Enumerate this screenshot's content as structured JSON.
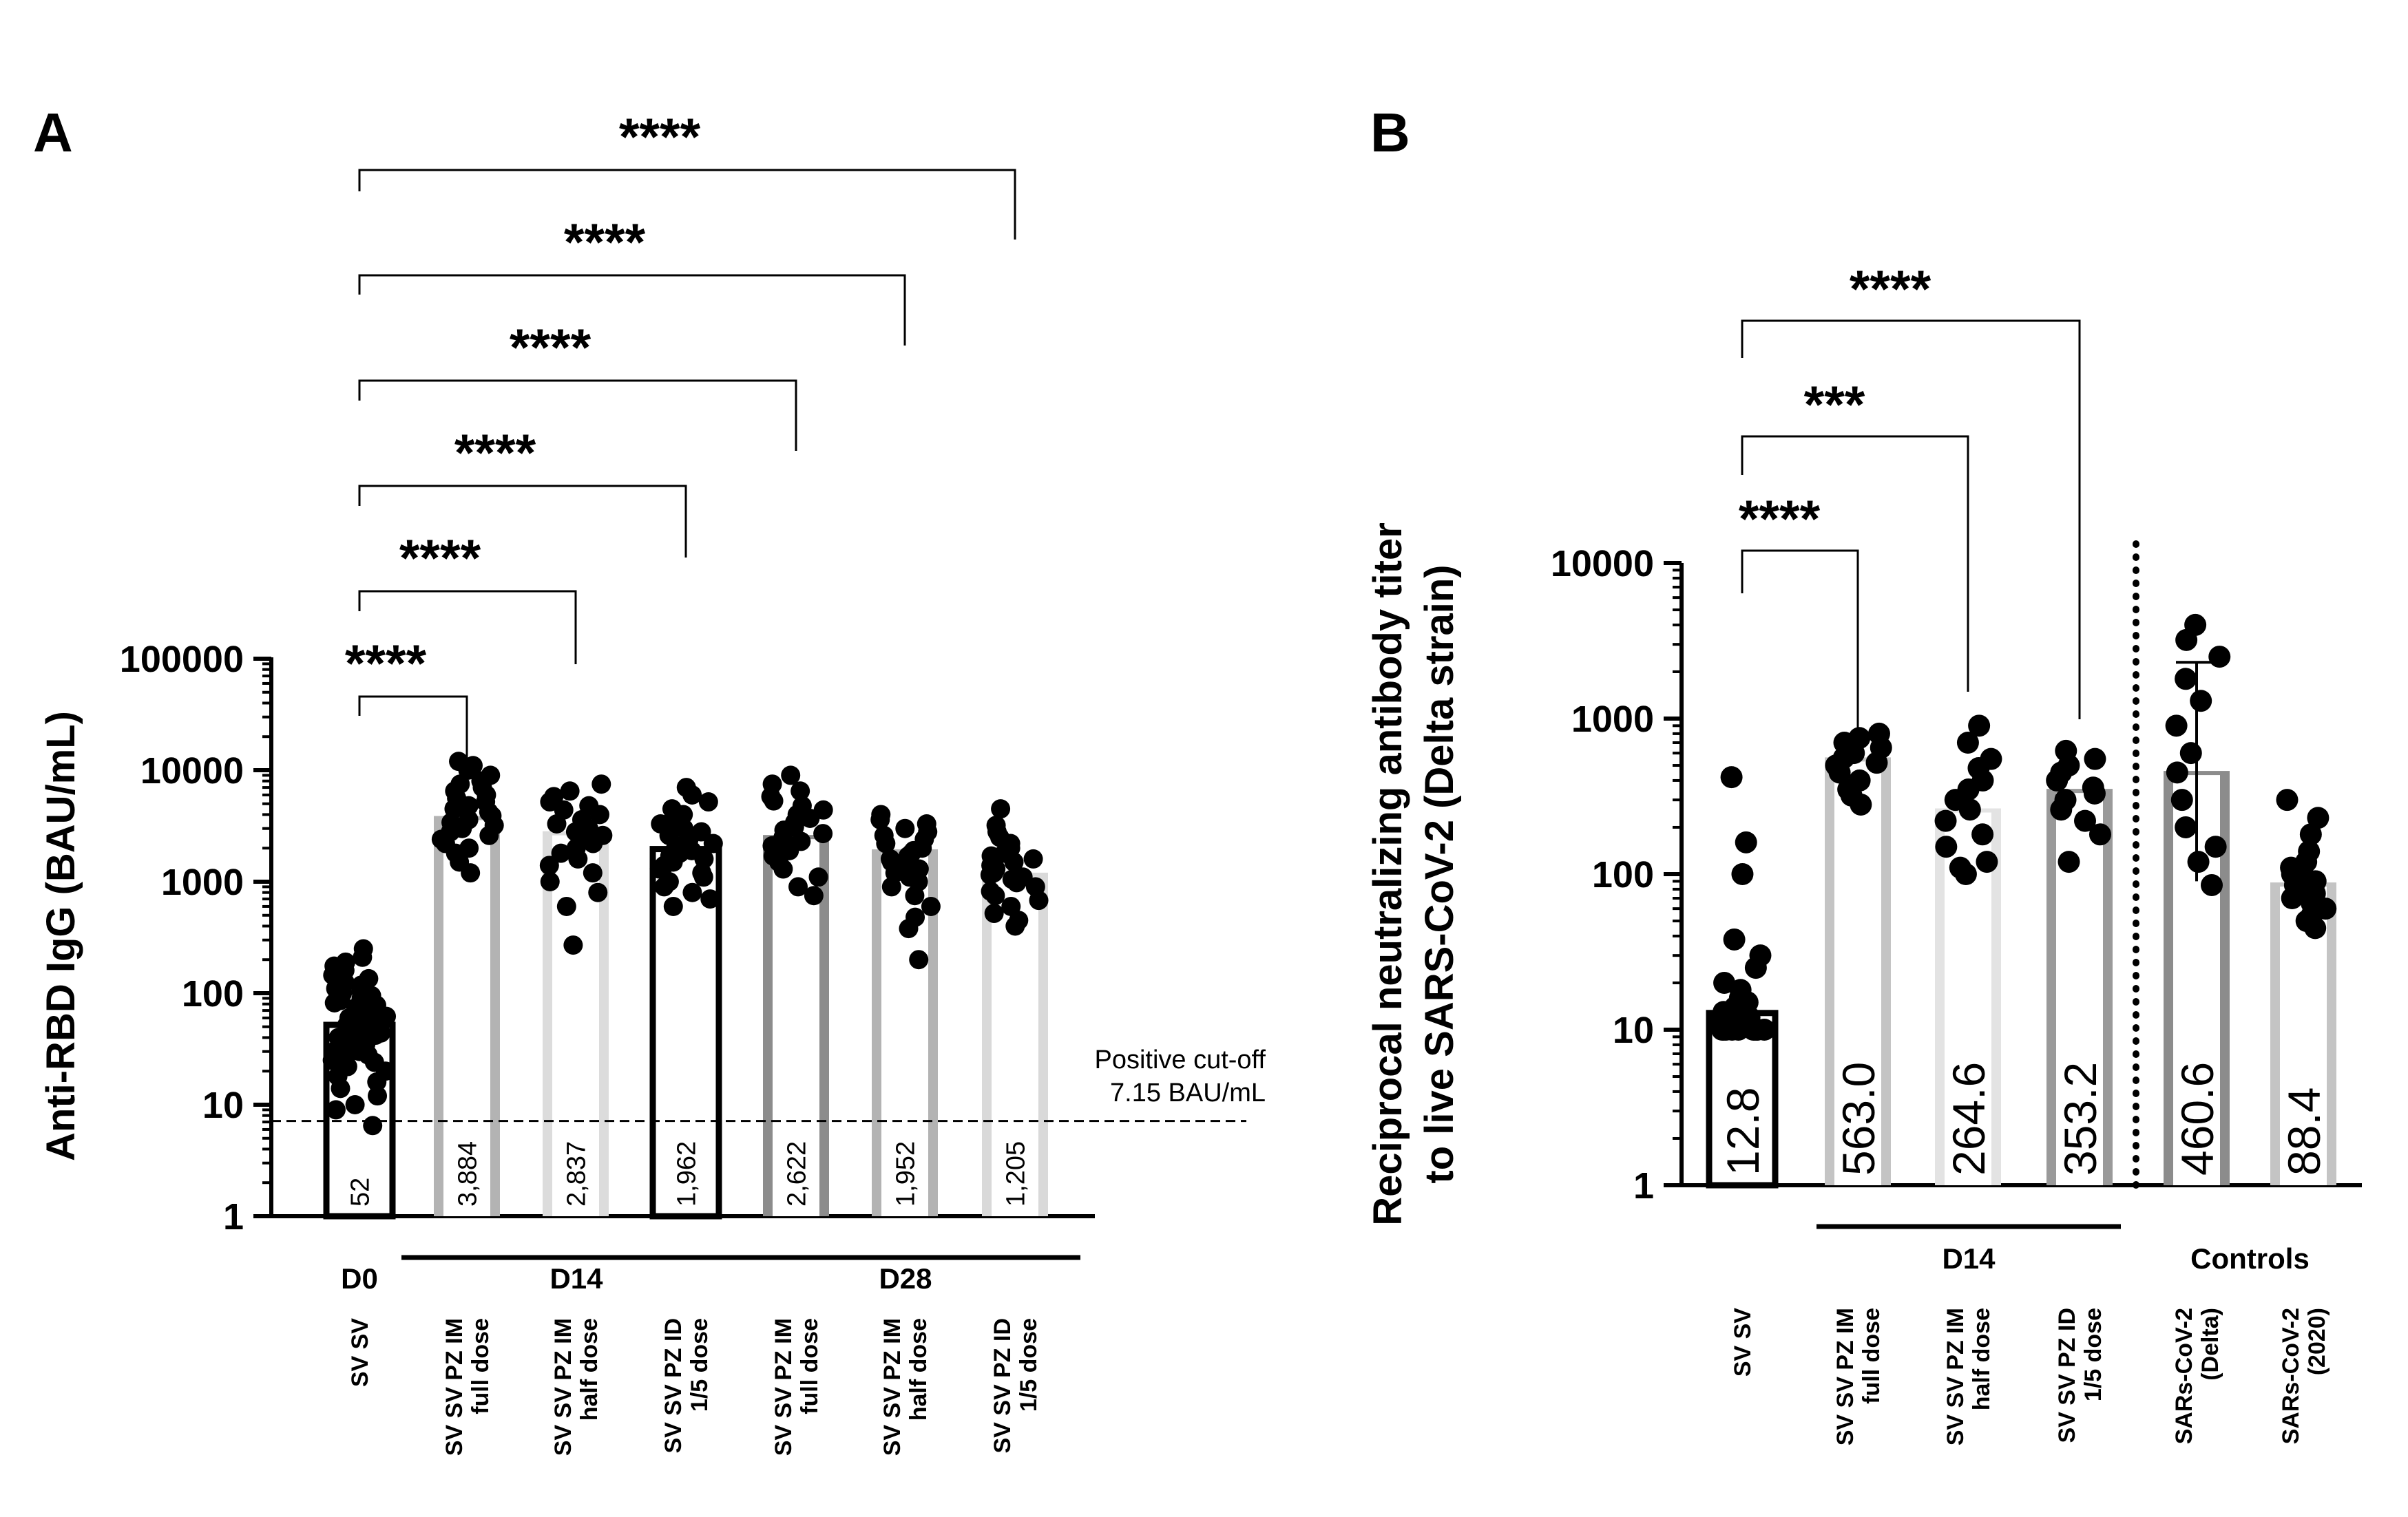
{
  "chart_data": [
    {
      "panel": "A",
      "type": "bar",
      "ylabel": "Anti-RBD IgG (BAU/mL)",
      "yscale": "log",
      "ylim": [
        1,
        100000
      ],
      "yticks": [
        1,
        10,
        100,
        1000,
        10000,
        100000
      ],
      "ytick_labels": [
        "1",
        "10",
        "100",
        "1000",
        "10000",
        "100000"
      ],
      "categories": [
        "SV SV",
        "SV SV PZ IM full dose",
        "SV SV PZ IM half dose",
        "SV SV PZ ID 1/5 dose",
        "SV SV PZ IM full dose",
        "SV SV PZ IM half dose",
        "SV SV PZ ID 1/5 dose"
      ],
      "category_lines": [
        [
          "SV SV"
        ],
        [
          "SV SV PZ IM",
          "full dose"
        ],
        [
          "SV SV PZ IM",
          "half dose"
        ],
        [
          "SV SV PZ ID",
          "1/5 dose"
        ],
        [
          "SV SV PZ IM",
          "full dose"
        ],
        [
          "SV SV PZ IM",
          "half dose"
        ],
        [
          "SV SV PZ ID",
          "1/5 dose"
        ]
      ],
      "values": [
        52,
        3884,
        2837,
        1962,
        2622,
        1952,
        1205
      ],
      "value_labels": [
        "52",
        "3,884",
        "2,837",
        "1,962",
        "2,622",
        "1,952",
        "1,205"
      ],
      "bar_colors": [
        "#ffffff",
        "#b3b3b3",
        "#dcdcdc",
        "#ffffff",
        "#8c8c8c",
        "#b3b3b3",
        "#d9d9d9"
      ],
      "bar_edge_colors": [
        "#000000",
        "#b3b3b3",
        "#dcdcdc",
        "#000000",
        "#8c8c8c",
        "#b3b3b3",
        "#d9d9d9"
      ],
      "groups": [
        {
          "label": "D0",
          "from": 0,
          "to": 0,
          "underline": false
        },
        {
          "label": "D14",
          "from": 1,
          "to": 3,
          "underline": true
        },
        {
          "label": "D28",
          "from": 4,
          "to": 6,
          "underline": true
        }
      ],
      "reference_line": {
        "value": 7.15,
        "label_line1": "Positive cut-off",
        "label_line2": "7.15 BAU/mL",
        "style": "dashed"
      },
      "comparisons": [
        {
          "from": 0,
          "to": 1,
          "label": "****"
        },
        {
          "from": 0,
          "to": 2,
          "label": "****"
        },
        {
          "from": 0,
          "to": 3,
          "label": "****"
        },
        {
          "from": 0,
          "to": 4,
          "label": "****"
        },
        {
          "from": 0,
          "to": 5,
          "label": "****"
        },
        {
          "from": 0,
          "to": 6,
          "label": "****"
        }
      ],
      "points": [
        [
          6.5,
          9,
          10,
          12,
          14,
          16,
          18,
          20,
          22,
          24,
          25,
          27,
          28,
          30,
          32,
          33,
          35,
          36,
          38,
          40,
          42,
          44,
          46,
          48,
          50,
          52,
          54,
          56,
          58,
          60,
          62,
          65,
          68,
          70,
          74,
          78,
          82,
          86,
          90,
          95,
          100,
          105,
          110,
          118,
          125,
          135,
          145,
          160,
          175,
          190,
          210,
          250
        ],
        [
          1200,
          1500,
          1800,
          2000,
          2200,
          2400,
          2600,
          2800,
          3000,
          3200,
          3400,
          3600,
          3900,
          4200,
          4500,
          4800,
          5200,
          5600,
          6000,
          6500,
          7000,
          7500,
          8000,
          9000,
          10000,
          11000,
          12000
        ],
        [
          270,
          600,
          800,
          1000,
          1200,
          1400,
          1600,
          1800,
          2000,
          2200,
          2400,
          2600,
          2800,
          3000,
          3300,
          3600,
          4000,
          4400,
          4800,
          5200,
          5800,
          6500,
          7500
        ],
        [
          600,
          700,
          800,
          900,
          1000,
          1100,
          1200,
          1300,
          1400,
          1500,
          1600,
          1700,
          1800,
          1900,
          2000,
          2100,
          2200,
          2400,
          2600,
          2800,
          3000,
          3300,
          3600,
          4000,
          4500,
          5200,
          6000,
          7000
        ],
        [
          750,
          900,
          1100,
          1300,
          1500,
          1700,
          1900,
          2100,
          2300,
          2500,
          2700,
          2900,
          3100,
          3400,
          3700,
          4000,
          4400,
          4800,
          5300,
          5800,
          6500,
          7500,
          9000
        ],
        [
          200,
          380,
          480,
          600,
          750,
          900,
          1000,
          1100,
          1200,
          1300,
          1400,
          1500,
          1600,
          1700,
          1800,
          1900,
          2000,
          2200,
          2400,
          2600,
          2800,
          3000,
          3300,
          3600,
          4000
        ],
        [
          400,
          450,
          520,
          600,
          680,
          750,
          820,
          900,
          980,
          1050,
          1100,
          1150,
          1200,
          1300,
          1400,
          1500,
          1600,
          1700,
          1800,
          2000,
          2200,
          2500,
          2800,
          3200,
          4500
        ]
      ]
    },
    {
      "panel": "B",
      "type": "bar",
      "ylabel": "Reciprocal neutralizing antibody titer",
      "ylabel2": "to live SARS-CoV-2 (Delta strain)",
      "yscale": "log",
      "ylim": [
        1,
        10000
      ],
      "yticks": [
        1,
        10,
        100,
        1000,
        10000
      ],
      "ytick_labels": [
        "1",
        "10",
        "100",
        "1000",
        "10000"
      ],
      "categories": [
        "SV SV",
        "SV SV PZ IM full dose",
        "SV SV PZ IM half dose",
        "SV SV PZ ID 1/5 dose",
        "SARs-CoV-2 (Delta)",
        "SARs-CoV-2 (2020)"
      ],
      "category_lines": [
        [
          "SV SV"
        ],
        [
          "SV SV PZ IM",
          "full dose"
        ],
        [
          "SV SV PZ IM",
          "half dose"
        ],
        [
          "SV SV PZ ID",
          "1/5 dose"
        ],
        [
          "SARs-CoV-2",
          "(Delta)"
        ],
        [
          "SARs-CoV-2",
          "(2020)"
        ]
      ],
      "values": [
        12.8,
        563.0,
        264.6,
        353.2,
        460.6,
        88.4
      ],
      "value_labels": [
        "12.8",
        "563.0",
        "264.6",
        "353.2",
        "460.6",
        "88.4"
      ],
      "bar_colors": [
        "#ffffff",
        "#c4c4c4",
        "#e3e3e3",
        "#9a9a9a",
        "#8c8c8c",
        "#c4c4c4"
      ],
      "bar_edge_colors": [
        "#000000",
        "#c4c4c4",
        "#e3e3e3",
        "#9a9a9a",
        "#8c8c8c",
        "#c4c4c4"
      ],
      "groups": [
        {
          "label": "D14",
          "from": 1,
          "to": 3,
          "underline": true
        },
        {
          "label": "Controls",
          "from": 4,
          "to": 5,
          "underline": false
        }
      ],
      "divider_after": 3,
      "error_bar": {
        "index": 4,
        "low": 90,
        "high": 2300
      },
      "comparisons": [
        {
          "from": 0,
          "to": 1,
          "label": "****"
        },
        {
          "from": 0,
          "to": 2,
          "label": "***"
        },
        {
          "from": 0,
          "to": 3,
          "label": "****"
        }
      ],
      "points": [
        [
          10,
          10,
          10,
          10,
          10,
          10,
          10,
          10,
          10,
          10,
          11,
          11,
          12,
          12,
          13,
          14,
          15,
          16,
          18,
          20,
          25,
          30,
          38,
          100,
          160,
          420
        ],
        [
          280,
          320,
          350,
          400,
          450,
          500,
          520,
          560,
          600,
          650,
          700,
          750,
          800
        ],
        [
          100,
          110,
          120,
          150,
          180,
          220,
          260,
          300,
          350,
          400,
          480,
          550,
          700,
          900
        ],
        [
          120,
          180,
          220,
          260,
          300,
          330,
          360,
          400,
          450,
          500,
          550,
          620
        ],
        [
          85,
          120,
          150,
          200,
          300,
          450,
          600,
          900,
          1300,
          1800,
          2500,
          3200,
          4000
        ],
        [
          45,
          50,
          55,
          60,
          65,
          70,
          75,
          80,
          85,
          90,
          95,
          100,
          110,
          120,
          140,
          180,
          230,
          300
        ]
      ]
    }
  ]
}
